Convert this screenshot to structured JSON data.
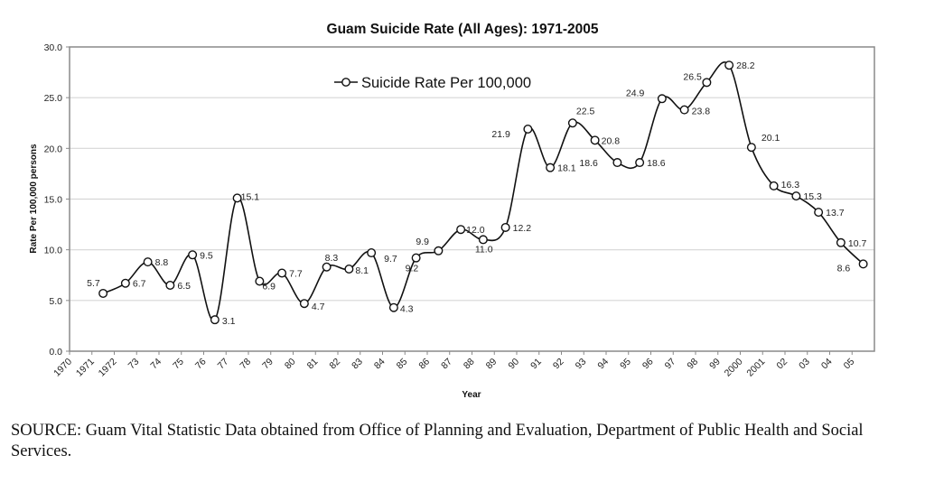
{
  "chart_data": {
    "type": "line",
    "title": "Guam Suicide Rate  (All Ages): 1971-2005",
    "xlabel": "Year",
    "ylabel": "Rate Per 100,000 persons",
    "ylim": [
      0,
      30
    ],
    "yticks": [
      "0.0",
      "5.0",
      "10.0",
      "15.0",
      "20.0",
      "25.0",
      "30.0"
    ],
    "ytick_values": [
      0,
      5,
      10,
      15,
      20,
      25,
      30
    ],
    "grid": true,
    "legend_position": "top-center",
    "xtick_labels": [
      "1970",
      "1971",
      "1972",
      "73",
      "74",
      "75",
      "76",
      "77",
      "78",
      "79",
      "80",
      "81",
      "82",
      "83",
      "84",
      "85",
      "86",
      "87",
      "88",
      "89",
      "90",
      "91",
      "92",
      "93",
      "94",
      "95",
      "96",
      "97",
      "98",
      "99",
      "2000",
      "2001",
      "02",
      "03",
      "04",
      "05"
    ],
    "x": [
      1971,
      1972,
      1973,
      1974,
      1975,
      1976,
      1977,
      1978,
      1979,
      1980,
      1981,
      1982,
      1983,
      1984,
      1985,
      1986,
      1987,
      1988,
      1989,
      1990,
      1991,
      1992,
      1993,
      1994,
      1995,
      1996,
      1997,
      1998,
      1999,
      2000,
      2001,
      2002,
      2003,
      2004,
      2005
    ],
    "series": [
      {
        "name": "Suicide Rate Per 100,000",
        "values": [
          5.7,
          6.7,
          8.8,
          6.5,
          9.5,
          3.1,
          15.1,
          6.9,
          7.7,
          4.7,
          8.3,
          8.1,
          9.7,
          4.3,
          9.2,
          9.9,
          12.0,
          11.0,
          12.2,
          21.9,
          18.1,
          22.5,
          20.8,
          18.6,
          18.6,
          24.9,
          23.8,
          26.5,
          28.2,
          20.1,
          16.3,
          15.3,
          13.7,
          10.7,
          8.6
        ],
        "labels": [
          "5.7",
          "6.7",
          "8.8",
          "6.5",
          "9.5",
          "3.1",
          "15.1",
          "6.9",
          "7.7",
          "4.7",
          "8.3",
          "8.1",
          "9.7",
          "4.3",
          "9.2",
          "9.9",
          "12.0",
          "11.0",
          "12.2",
          "21.9",
          "18.1",
          "22.5",
          "20.8",
          "18.6",
          "18.6",
          "24.9",
          "23.8",
          "26.5",
          "28.2",
          "20.1",
          "16.3",
          "15.3",
          "13.7",
          "10.7",
          "8.6"
        ],
        "marker": "open-circle",
        "line_color": "#111111"
      }
    ]
  },
  "source_note": "SOURCE: Guam Vital Statistic Data obtained from Office of Planning and Evaluation, Department of Public Health and Social Services."
}
